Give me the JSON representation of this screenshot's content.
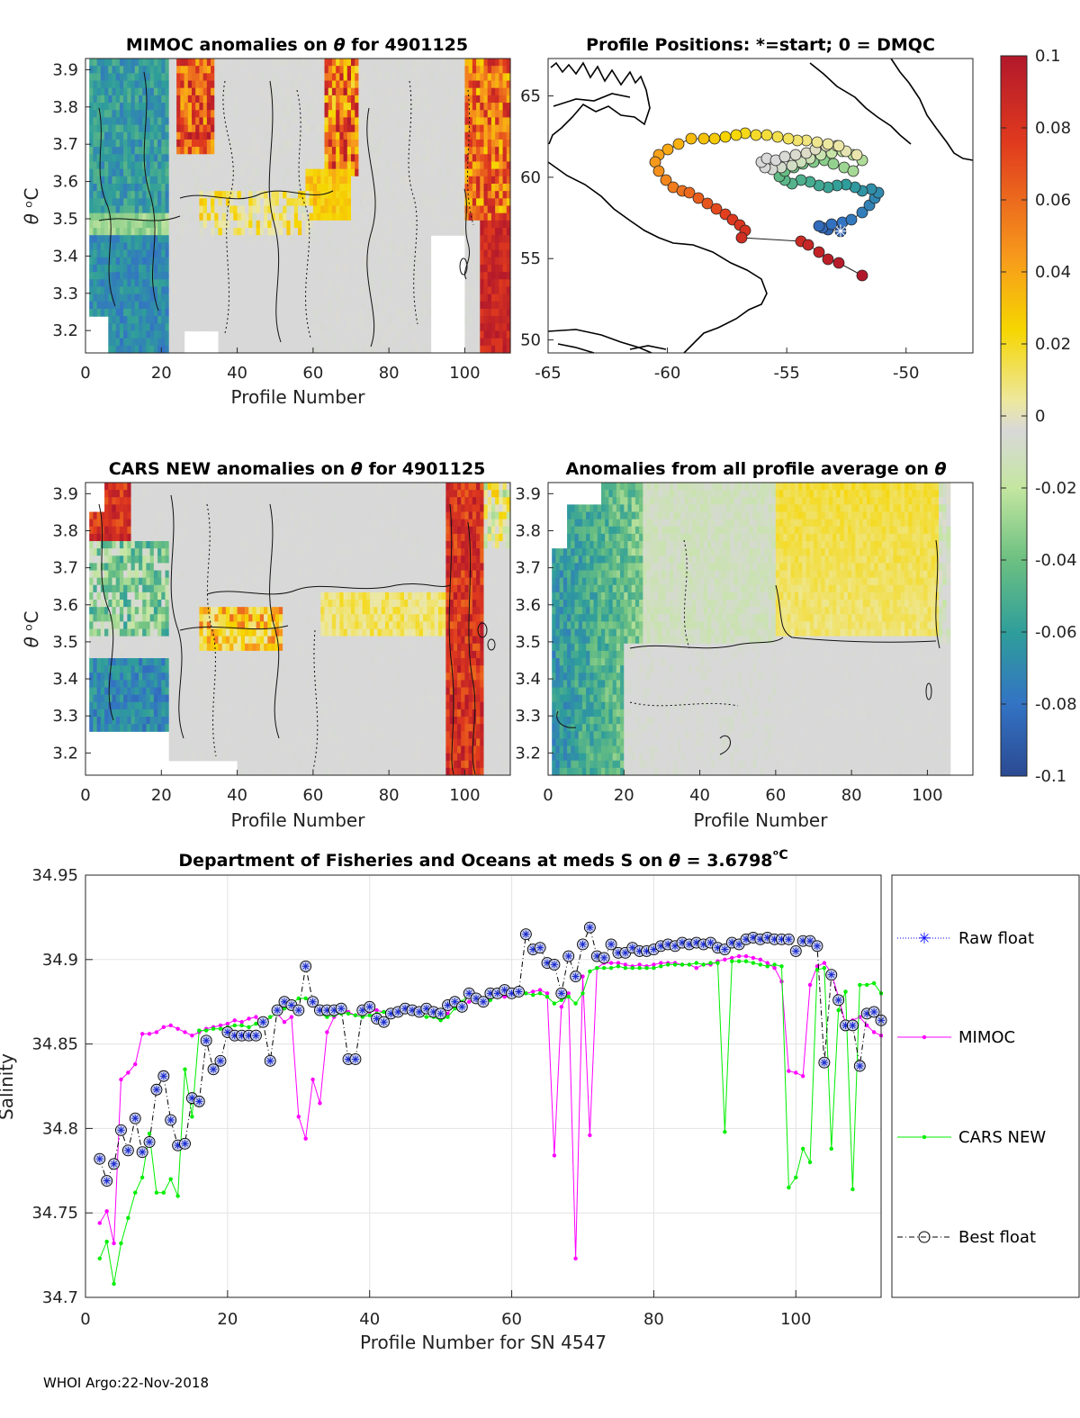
{
  "footer": "WHOI Argo:22-Nov-2018",
  "colorbar": {
    "ticks": [
      "0.1",
      "0.08",
      "0.06",
      "0.04",
      "0.02",
      "0",
      "-0.02",
      "-0.04",
      "-0.06",
      "-0.08",
      "-0.1"
    ],
    "range": [
      -0.1,
      0.1
    ]
  },
  "panels": {
    "p1": {
      "title_a": "MIMOC anomalies on ",
      "theta": "θ",
      "title_b": "  for 4901125",
      "xlabel": "Profile Number",
      "ylabel_theta": "θ",
      "ylabel_unit": " ᵒC",
      "xticks": [
        "0",
        "20",
        "40",
        "60",
        "80",
        "100"
      ],
      "yticks": [
        "3.9",
        "3.8",
        "3.7",
        "3.6",
        "3.5",
        "3.4",
        "3.3",
        "3.2"
      ]
    },
    "p2": {
      "title": "Profile Positions: *=start; 0 = DMQC",
      "xticks": [
        "-65",
        "-60",
        "-55",
        "-50"
      ],
      "yticks": [
        "65",
        "60",
        "55",
        "50"
      ]
    },
    "p3": {
      "title_a": "CARS NEW anomalies on ",
      "theta": "θ",
      "title_b": " for 4901125",
      "xlabel": "Profile Number",
      "ylabel_theta": "θ",
      "ylabel_unit": " ᵒC",
      "xticks": [
        "0",
        "20",
        "40",
        "60",
        "80",
        "100"
      ],
      "yticks": [
        "3.9",
        "3.8",
        "3.7",
        "3.6",
        "3.5",
        "3.4",
        "3.3",
        "3.2"
      ]
    },
    "p4": {
      "title_a": "Anomalies from all profile average on ",
      "theta": "θ",
      "xlabel": "Profile Number",
      "xticks": [
        "0",
        "20",
        "40",
        "60",
        "80",
        "100"
      ],
      "yticks": [
        "3.9",
        "3.8",
        "3.7",
        "3.6",
        "3.5",
        "3.4",
        "3.3",
        "3.2"
      ]
    }
  },
  "chart_data": {
    "type": "line",
    "title_a": "Department of Fisheries and Oceans at meds S on ",
    "title_theta": "θ",
    "title_b": " = 3.6798",
    "title_unit": "ᵒC",
    "xlabel": "Profile Number for SN 4547",
    "ylabel": "Salinity",
    "xlim": [
      0,
      112
    ],
    "ylim": [
      34.7,
      34.95
    ],
    "xticks": [
      "0",
      "20",
      "40",
      "60",
      "80",
      "100"
    ],
    "yticks": [
      "34.95",
      "34.9",
      "34.85",
      "34.8",
      "34.75",
      "34.7"
    ],
    "legend": [
      "Raw float",
      "MIMOC",
      "CARS NEW",
      "Best float"
    ],
    "series": [
      {
        "name": "MIMOC",
        "color": "#ff00ff",
        "x": [
          2,
          3,
          4,
          5,
          6,
          7,
          8,
          9,
          10,
          11,
          12,
          13,
          14,
          15,
          16,
          17,
          18,
          19,
          20,
          21,
          22,
          23,
          24,
          25,
          26,
          27,
          28,
          29,
          30,
          31,
          32,
          33,
          34,
          35,
          36,
          37,
          38,
          39,
          40,
          41,
          42,
          43,
          44,
          45,
          46,
          47,
          48,
          49,
          50,
          51,
          52,
          53,
          54,
          55,
          56,
          57,
          58,
          59,
          60,
          61,
          62,
          63,
          64,
          65,
          66,
          67,
          68,
          69,
          70,
          71,
          72,
          73,
          74,
          75,
          76,
          77,
          78,
          79,
          80,
          81,
          82,
          83,
          84,
          85,
          86,
          87,
          88,
          89,
          90,
          91,
          92,
          93,
          94,
          95,
          96,
          97,
          98,
          99,
          100,
          101,
          102,
          103,
          104,
          105,
          106,
          107,
          108,
          109,
          110,
          111,
          112
        ],
        "y": [
          34.744,
          34.751,
          34.732,
          34.829,
          34.833,
          34.838,
          34.856,
          34.856,
          34.857,
          34.86,
          34.861,
          34.859,
          34.857,
          34.855,
          34.857,
          34.859,
          34.86,
          34.861,
          34.862,
          34.864,
          34.863,
          34.865,
          34.866,
          34.861,
          34.866,
          34.868,
          34.863,
          34.866,
          34.807,
          34.794,
          34.829,
          34.815,
          34.857,
          34.866,
          34.869,
          34.869,
          34.867,
          34.868,
          34.869,
          34.87,
          34.869,
          34.87,
          34.871,
          34.87,
          34.869,
          34.869,
          34.869,
          34.867,
          34.867,
          34.868,
          34.875,
          34.873,
          34.875,
          34.876,
          34.877,
          34.877,
          34.878,
          34.878,
          34.878,
          34.879,
          34.88,
          34.881,
          34.882,
          34.88,
          34.784,
          34.872,
          34.88,
          34.723,
          34.89,
          34.796,
          34.895,
          34.898,
          34.898,
          34.898,
          34.897,
          34.896,
          34.897,
          34.896,
          34.897,
          34.898,
          34.898,
          34.898,
          34.897,
          34.897,
          34.895,
          34.897,
          34.897,
          34.899,
          34.9,
          34.901,
          34.902,
          34.902,
          34.901,
          34.9,
          34.898,
          34.895,
          34.887,
          34.834,
          34.833,
          34.831,
          34.885,
          34.896,
          34.898,
          34.892,
          34.878,
          34.862,
          34.864,
          34.866,
          34.861,
          34.857,
          34.855
        ]
      },
      {
        "name": "CARS NEW",
        "color": "#00ee00",
        "x": [
          2,
          3,
          4,
          5,
          6,
          7,
          8,
          9,
          10,
          11,
          12,
          13,
          14,
          15,
          16,
          17,
          18,
          19,
          20,
          21,
          22,
          23,
          24,
          25,
          26,
          27,
          28,
          29,
          30,
          31,
          32,
          33,
          34,
          35,
          36,
          37,
          38,
          39,
          40,
          41,
          42,
          43,
          44,
          45,
          46,
          47,
          48,
          49,
          50,
          51,
          52,
          53,
          54,
          55,
          56,
          57,
          58,
          59,
          60,
          61,
          62,
          63,
          64,
          65,
          66,
          67,
          68,
          69,
          70,
          71,
          72,
          73,
          74,
          75,
          76,
          77,
          78,
          79,
          80,
          81,
          82,
          83,
          84,
          85,
          86,
          87,
          88,
          89,
          90,
          91,
          92,
          93,
          94,
          95,
          96,
          97,
          98,
          99,
          100,
          101,
          102,
          103,
          104,
          105,
          106,
          107,
          108,
          109,
          110,
          111,
          112
        ],
        "y": [
          34.723,
          34.733,
          34.708,
          34.732,
          34.747,
          34.762,
          34.771,
          34.797,
          34.762,
          34.762,
          34.77,
          34.76,
          34.835,
          34.807,
          34.858,
          34.858,
          34.859,
          34.859,
          34.86,
          34.861,
          34.861,
          34.86,
          34.862,
          34.862,
          34.866,
          34.868,
          34.871,
          34.874,
          34.877,
          34.877,
          34.874,
          34.868,
          34.866,
          34.867,
          34.868,
          34.868,
          34.867,
          34.866,
          34.867,
          34.868,
          34.869,
          34.87,
          34.869,
          34.87,
          34.869,
          34.867,
          34.866,
          34.866,
          34.864,
          34.866,
          34.871,
          34.875,
          34.88,
          34.876,
          34.874,
          34.876,
          34.879,
          34.881,
          34.879,
          34.881,
          34.88,
          34.879,
          34.88,
          34.878,
          34.874,
          34.876,
          34.878,
          34.874,
          34.88,
          34.893,
          34.895,
          34.895,
          34.895,
          34.896,
          34.895,
          34.895,
          34.895,
          34.895,
          34.895,
          34.896,
          34.897,
          34.897,
          34.897,
          34.897,
          34.898,
          34.897,
          34.898,
          34.898,
          34.798,
          34.899,
          34.899,
          34.899,
          34.898,
          34.897,
          34.896,
          34.897,
          34.896,
          34.765,
          34.771,
          34.788,
          34.78,
          34.894,
          34.895,
          34.788,
          34.87,
          34.881,
          34.764,
          34.885,
          34.885,
          34.886,
          34.88
        ]
      },
      {
        "name": "Best float",
        "color": "#000000",
        "x": [
          2,
          3,
          4,
          5,
          6,
          7,
          8,
          9,
          10,
          11,
          12,
          13,
          14,
          15,
          16,
          17,
          18,
          19,
          20,
          21,
          22,
          23,
          24,
          25,
          26,
          27,
          28,
          29,
          30,
          31,
          32,
          33,
          34,
          35,
          36,
          37,
          38,
          39,
          40,
          41,
          42,
          43,
          44,
          45,
          46,
          47,
          48,
          49,
          50,
          51,
          52,
          53,
          54,
          55,
          56,
          57,
          58,
          59,
          60,
          61,
          62,
          63,
          64,
          65,
          66,
          67,
          68,
          69,
          70,
          71,
          72,
          73,
          74,
          75,
          76,
          77,
          78,
          79,
          80,
          81,
          82,
          83,
          84,
          85,
          86,
          87,
          88,
          89,
          90,
          91,
          92,
          93,
          94,
          95,
          96,
          97,
          98,
          99,
          100,
          101,
          102,
          103,
          104,
          105,
          106,
          107,
          108,
          109,
          110,
          111,
          112
        ],
        "y": [
          34.782,
          34.769,
          34.779,
          34.799,
          34.787,
          34.806,
          34.786,
          34.792,
          34.823,
          34.831,
          34.805,
          34.79,
          34.791,
          34.818,
          34.816,
          34.852,
          34.835,
          34.84,
          34.857,
          34.855,
          34.855,
          34.855,
          34.855,
          34.863,
          34.84,
          34.87,
          34.875,
          34.873,
          34.87,
          34.896,
          34.875,
          34.87,
          34.87,
          34.87,
          34.871,
          34.841,
          34.841,
          34.87,
          34.872,
          34.865,
          34.863,
          34.868,
          34.869,
          34.871,
          34.87,
          34.869,
          34.871,
          34.869,
          34.868,
          34.873,
          34.875,
          34.872,
          34.88,
          34.877,
          34.875,
          34.88,
          34.88,
          34.882,
          34.88,
          34.881,
          34.915,
          34.906,
          34.907,
          34.898,
          34.897,
          34.88,
          34.902,
          34.89,
          34.909,
          34.919,
          34.902,
          34.901,
          34.909,
          34.904,
          34.904,
          34.907,
          34.905,
          34.905,
          34.906,
          34.908,
          34.909,
          34.908,
          34.91,
          34.909,
          34.91,
          34.909,
          34.91,
          34.907,
          34.906,
          34.91,
          34.909,
          34.912,
          34.913,
          34.912,
          34.913,
          34.912,
          34.912,
          34.912,
          34.905,
          34.911,
          34.911,
          34.908,
          34.839,
          34.891,
          34.876,
          34.861,
          34.861,
          34.837,
          34.868,
          34.869,
          34.864
        ]
      }
    ]
  }
}
